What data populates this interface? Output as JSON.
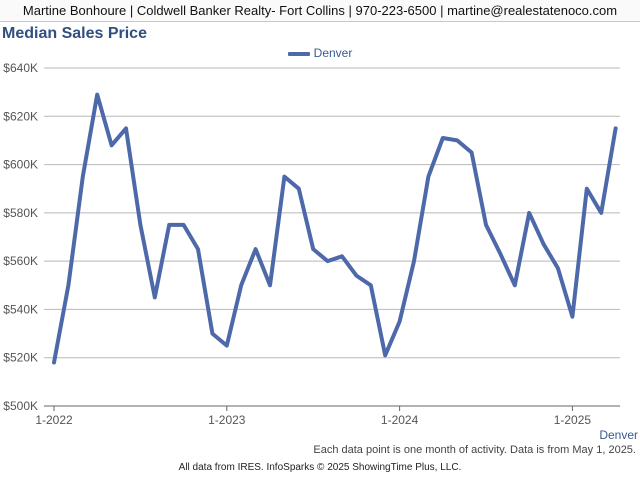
{
  "header": {
    "text": "Martine Bonhoure | Coldwell Banker Realty- Fort Collins | 970-223-6500 | martine@realestatenoco.com"
  },
  "chart_data": {
    "type": "line",
    "title": "Median Sales Price",
    "legend_position": "top-center",
    "grid": true,
    "yticks": [
      "$500K",
      "$520K",
      "$540K",
      "$560K",
      "$580K",
      "$600K",
      "$620K",
      "$640K"
    ],
    "ylim": [
      500000,
      640000
    ],
    "xticks": [
      "1-2022",
      "1-2023",
      "1-2024",
      "1-2025"
    ],
    "x": [
      "2022-01",
      "2022-02",
      "2022-03",
      "2022-04",
      "2022-05",
      "2022-06",
      "2022-07",
      "2022-08",
      "2022-09",
      "2022-10",
      "2022-11",
      "2022-12",
      "2023-01",
      "2023-02",
      "2023-03",
      "2023-04",
      "2023-05",
      "2023-06",
      "2023-07",
      "2023-08",
      "2023-09",
      "2023-10",
      "2023-11",
      "2023-12",
      "2024-01",
      "2024-02",
      "2024-03",
      "2024-04",
      "2024-05",
      "2024-06",
      "2024-07",
      "2024-08",
      "2024-09",
      "2024-10",
      "2024-11",
      "2024-12",
      "2025-01",
      "2025-02",
      "2025-03",
      "2025-04"
    ],
    "series": [
      {
        "name": "Denver",
        "color": "#4e69a9",
        "values": [
          518000,
          550000,
          595000,
          629000,
          608000,
          615000,
          575000,
          545000,
          575000,
          575000,
          565000,
          530000,
          525000,
          550000,
          565000,
          550000,
          595000,
          590000,
          565000,
          560000,
          562000,
          554000,
          550000,
          521000,
          535000,
          560000,
          595000,
          611000,
          610000,
          605000,
          575000,
          563000,
          550000,
          580000,
          567000,
          557000,
          537000,
          590000,
          580000,
          615000
        ]
      }
    ],
    "series_end_label": "Denver"
  },
  "footnote": "Each data point is one month of activity. Data is from May 1, 2025.",
  "credit": "All data from IRES. InfoSparks © 2025 ShowingTime Plus, LLC."
}
